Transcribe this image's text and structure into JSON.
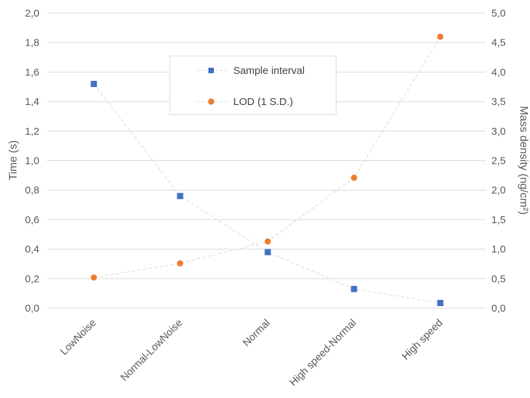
{
  "chart_data": {
    "type": "scatter",
    "categories": [
      "LowNoise",
      "Normal-LowNoise",
      "Normal",
      "High speed-Normal",
      "High speed"
    ],
    "series": [
      {
        "name": "Sample interval",
        "axis": "left",
        "marker": "square",
        "color": "#4472C4",
        "values": [
          1.52,
          0.76,
          0.38,
          0.13,
          0.035
        ]
      },
      {
        "name": "LOD (1 S.D.)",
        "axis": "right",
        "marker": "circle",
        "color": "#ED7D31",
        "values": [
          0.52,
          0.76,
          1.13,
          2.21,
          4.6
        ]
      }
    ],
    "ylabel": "Time (s)",
    "ylabel_right": "Mass density (ng/cm²)",
    "ylim": [
      0,
      2
    ],
    "ylim_right": [
      0,
      5
    ],
    "yticks": [
      "0,0",
      "0,2",
      "0,4",
      "0,6",
      "0,8",
      "1,0",
      "1,2",
      "1,4",
      "1,6",
      "1,8",
      "2,0"
    ],
    "yticks_right": [
      "0,0",
      "0,5",
      "1,0",
      "1,5",
      "2,0",
      "2,5",
      "3,0",
      "3,5",
      "4,0",
      "4,5",
      "5,0"
    ],
    "grid": true,
    "legend": "upper-center",
    "connector_color": "#D9D9D9",
    "grid_color": "#D9D9D9"
  }
}
